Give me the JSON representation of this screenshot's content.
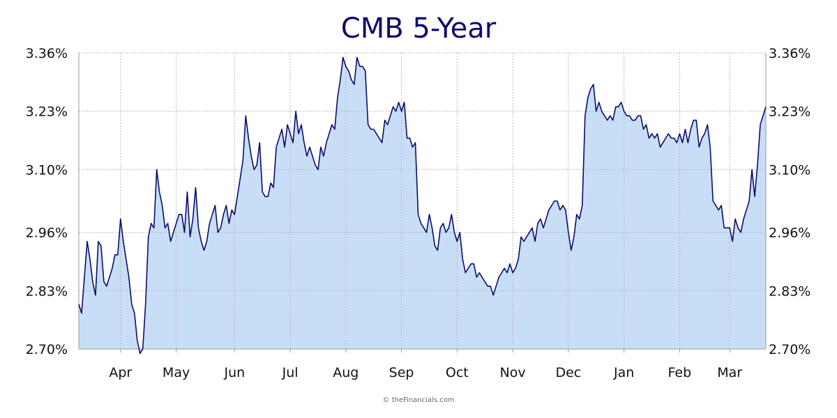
{
  "colors": {
    "line": "#0b0b6e",
    "fill": "#c8def6",
    "grid": "#b8b8b8",
    "axis": "#999999",
    "title": "#0b0b6e",
    "text": "#111111"
  },
  "copyright": "© theFinancials.com",
  "chart_data": {
    "type": "area",
    "title": "CMB 5-Year",
    "xlabel": "",
    "ylabel": "",
    "grid": true,
    "legend": "none",
    "y_axis_sides": [
      "left",
      "right"
    ],
    "ylim": [
      2.7,
      3.36
    ],
    "y_ticks": [
      2.7,
      2.83,
      2.96,
      3.1,
      3.23,
      3.36
    ],
    "y_tick_labels": [
      "2.70%",
      "2.83%",
      "2.96%",
      "3.10%",
      "3.23%",
      "3.36%"
    ],
    "x_tick_labels": [
      "Apr",
      "May",
      "Jun",
      "Jul",
      "Aug",
      "Sep",
      "Oct",
      "Nov",
      "Dec",
      "Jan",
      "Feb",
      "Mar"
    ],
    "x_tick_index": [
      15,
      35,
      56,
      76,
      96,
      116,
      136,
      156,
      176,
      196,
      216,
      234
    ],
    "values": [
      2.8,
      2.78,
      2.86,
      2.94,
      2.9,
      2.85,
      2.82,
      2.94,
      2.93,
      2.85,
      2.84,
      2.86,
      2.88,
      2.91,
      2.91,
      2.99,
      2.94,
      2.9,
      2.86,
      2.8,
      2.78,
      2.72,
      2.69,
      2.7,
      2.8,
      2.95,
      2.98,
      2.97,
      3.1,
      3.05,
      3.02,
      2.97,
      2.98,
      2.94,
      2.96,
      2.98,
      3.0,
      3.0,
      2.96,
      3.05,
      2.95,
      2.99,
      3.06,
      2.97,
      2.94,
      2.92,
      2.94,
      2.98,
      3.0,
      3.02,
      2.96,
      2.97,
      3.0,
      3.02,
      2.98,
      3.01,
      3.0,
      3.04,
      3.08,
      3.12,
      3.22,
      3.17,
      3.13,
      3.1,
      3.11,
      3.16,
      3.05,
      3.04,
      3.04,
      3.07,
      3.06,
      3.15,
      3.17,
      3.19,
      3.15,
      3.2,
      3.18,
      3.16,
      3.23,
      3.18,
      3.2,
      3.16,
      3.13,
      3.15,
      3.13,
      3.11,
      3.1,
      3.15,
      3.13,
      3.16,
      3.18,
      3.2,
      3.19,
      3.26,
      3.3,
      3.35,
      3.33,
      3.32,
      3.3,
      3.29,
      3.35,
      3.33,
      3.33,
      3.32,
      3.2,
      3.19,
      3.19,
      3.18,
      3.17,
      3.16,
      3.21,
      3.2,
      3.22,
      3.24,
      3.23,
      3.25,
      3.23,
      3.25,
      3.17,
      3.17,
      3.15,
      3.16,
      3.0,
      2.98,
      2.97,
      2.96,
      3.0,
      2.97,
      2.93,
      2.92,
      2.97,
      2.98,
      2.96,
      2.97,
      3.0,
      2.96,
      2.94,
      2.96,
      2.9,
      2.87,
      2.88,
      2.89,
      2.89,
      2.86,
      2.87,
      2.86,
      2.85,
      2.84,
      2.84,
      2.82,
      2.84,
      2.86,
      2.87,
      2.88,
      2.87,
      2.89,
      2.87,
      2.88,
      2.9,
      2.95,
      2.94,
      2.95,
      2.96,
      2.97,
      2.94,
      2.98,
      2.99,
      2.97,
      2.99,
      3.01,
      3.02,
      3.03,
      3.03,
      3.01,
      3.02,
      3.01,
      2.96,
      2.92,
      2.95,
      3.0,
      2.99,
      3.02,
      3.22,
      3.26,
      3.28,
      3.29,
      3.23,
      3.25,
      3.23,
      3.22,
      3.21,
      3.22,
      3.21,
      3.24,
      3.24,
      3.25,
      3.23,
      3.22,
      3.22,
      3.21,
      3.21,
      3.22,
      3.22,
      3.19,
      3.2,
      3.17,
      3.18,
      3.17,
      3.18,
      3.15,
      3.16,
      3.17,
      3.18,
      3.17,
      3.17,
      3.16,
      3.18,
      3.16,
      3.19,
      3.16,
      3.19,
      3.21,
      3.21,
      3.15,
      3.17,
      3.18,
      3.2,
      3.15,
      3.03,
      3.02,
      3.01,
      3.02,
      2.97,
      2.97,
      2.97,
      2.94,
      2.99,
      2.97,
      2.96,
      2.99,
      3.01,
      3.03,
      3.1,
      3.04,
      3.11,
      3.2,
      3.22,
      3.24
    ]
  }
}
